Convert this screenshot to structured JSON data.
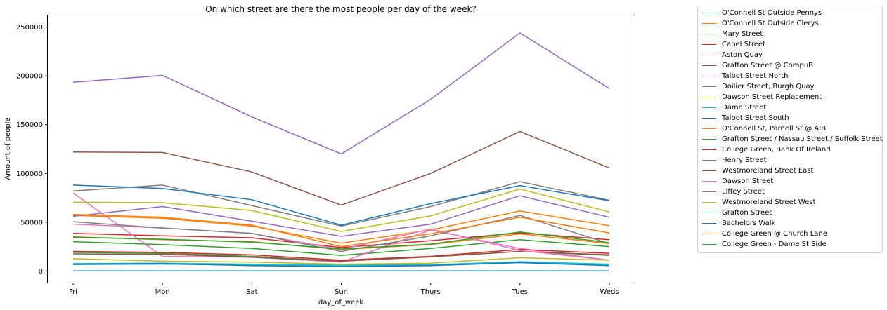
{
  "chart_data": {
    "type": "line",
    "title": "On which street are there the most people per day of the week?",
    "xlabel": "day_of_week",
    "ylabel": "Amount of people",
    "categories": [
      "Fri",
      "Mon",
      "Sat",
      "Sun",
      "Thurs",
      "Tues",
      "Weds"
    ],
    "ylim": [
      -12000,
      262000
    ],
    "yticks": [
      0,
      50000,
      100000,
      150000,
      200000,
      250000
    ],
    "legend_position": "outside-right",
    "grid": false,
    "series": [
      {
        "name": "O'Connell St Outside Pennys",
        "color": "#1f77b4",
        "values": [
          0,
          0,
          0,
          0,
          0,
          0,
          0
        ]
      },
      {
        "name": "O'Connell St Outside Clerys",
        "color": "#ff7f0e",
        "values": [
          35000,
          32000,
          30000,
          22000,
          27000,
          38000,
          28000
        ]
      },
      {
        "name": "Mary Street",
        "color": "#2ca02c",
        "values": [
          30000,
          27000,
          23000,
          16000,
          23000,
          32000,
          25000
        ]
      },
      {
        "name": "Capel Street",
        "color": "#d62728",
        "values": [
          38500,
          36000,
          34000,
          24000,
          31000,
          39000,
          32000
        ]
      },
      {
        "name": "Aston Quay",
        "color": "#9467bd",
        "values": [
          193500,
          200500,
          158000,
          120000,
          176000,
          244000,
          187000
        ]
      },
      {
        "name": "Grafton Street @ CompuB",
        "color": "#8c564b",
        "values": [
          122000,
          121500,
          101500,
          67500,
          100000,
          143000,
          105500
        ]
      },
      {
        "name": "Talbot Street North",
        "color": "#e377c2",
        "values": [
          80000,
          15000,
          14000,
          9000,
          42000,
          23000,
          11000
        ]
      },
      {
        "name": "Doilier Street, Burgh Quay",
        "color": "#7f7f7f",
        "values": [
          82000,
          88000,
          67000,
          46000,
          66000,
          91500,
          72500
        ]
      },
      {
        "name": "Dawson Street Replacement",
        "color": "#bcbd22",
        "values": [
          70500,
          70000,
          62000,
          40500,
          56500,
          84000,
          60500
        ]
      },
      {
        "name": "Dame Street",
        "color": "#17becf",
        "values": [
          7500,
          8000,
          7000,
          6000,
          6500,
          9500,
          7000
        ]
      },
      {
        "name": "Talbot Street South",
        "color": "#1f77b4",
        "values": [
          88000,
          84500,
          73000,
          47000,
          69000,
          87500,
          72000
        ]
      },
      {
        "name": "O'Connell St, Parnell St @ AIB",
        "color": "#ff7f0e",
        "values": [
          57000,
          54000,
          46000,
          28500,
          42000,
          61500,
          46500
        ]
      },
      {
        "name": "Grafton Street / Nassau Street / Suffolk Street",
        "color": "#2ca02c",
        "values": [
          19000,
          18000,
          15000,
          10000,
          14500,
          20000,
          16000
        ]
      },
      {
        "name": "College Green, Bank Of Ireland",
        "color": "#d62728",
        "values": [
          20000,
          19000,
          16500,
          11000,
          15000,
          22000,
          18000
        ]
      },
      {
        "name": "Henry Street",
        "color": "#9467bd",
        "values": [
          56000,
          66000,
          51000,
          35500,
          48000,
          77000,
          55000
        ]
      },
      {
        "name": "Westmoreland Street East",
        "color": "#8c564b",
        "values": [
          17500,
          17000,
          14000,
          10000,
          14500,
          20000,
          16500
        ]
      },
      {
        "name": "Dawson Street",
        "color": "#e377c2",
        "values": [
          48000,
          44000,
          38500,
          22000,
          43000,
          21000,
          11000
        ]
      },
      {
        "name": "Liffey Street",
        "color": "#7f7f7f",
        "values": [
          50500,
          44000,
          38500,
          20000,
          36000,
          57000,
          28000
        ]
      },
      {
        "name": "Westmoreland Street West",
        "color": "#bcbd22",
        "values": [
          12500,
          10000,
          9000,
          7000,
          8000,
          13500,
          11000
        ]
      },
      {
        "name": "Grafton Street",
        "color": "#17becf",
        "values": [
          6500,
          7000,
          6000,
          5000,
          6000,
          9000,
          6500
        ]
      },
      {
        "name": "Bachelors Walk",
        "color": "#1f77b4",
        "values": [
          7000,
          7500,
          5500,
          4500,
          5500,
          8500,
          5500
        ]
      },
      {
        "name": "College Green @ Church Lane",
        "color": "#ff7f0e",
        "values": [
          58000,
          55000,
          47000,
          25000,
          38000,
          55000,
          39000
        ]
      },
      {
        "name": "College Green - Dame St Side",
        "color": "#2ca02c",
        "values": [
          34500,
          32500,
          29500,
          22500,
          27500,
          40000,
          29000
        ]
      }
    ]
  }
}
